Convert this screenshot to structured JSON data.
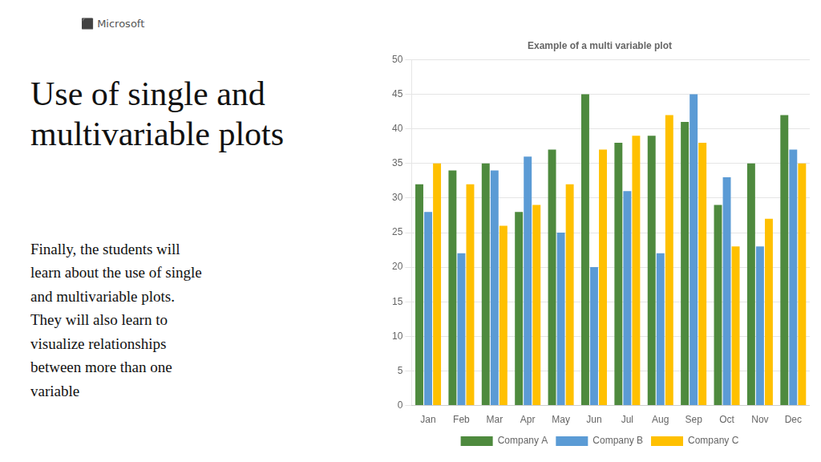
{
  "chart_data": {
    "type": "bar",
    "title": "Example of a multi variable plot",
    "categories": [
      "Jan",
      "Feb",
      "Mar",
      "Apr",
      "May",
      "Jun",
      "Jul",
      "Aug",
      "Sep",
      "Oct",
      "Nov",
      "Dec"
    ],
    "series": [
      {
        "name": "Company A",
        "color": "#4e8a3e",
        "values": [
          32,
          34,
          35,
          28,
          37,
          45,
          38,
          39,
          41,
          29,
          35,
          42
        ]
      },
      {
        "name": "Company B",
        "color": "#5b9bd5",
        "values": [
          28,
          22,
          34,
          36,
          25,
          20,
          31,
          22,
          45,
          33,
          23,
          37
        ]
      },
      {
        "name": "Company C",
        "color": "#ffc000",
        "values": [
          35,
          32,
          26,
          29,
          32,
          37,
          39,
          42,
          38,
          23,
          27,
          35
        ]
      }
    ],
    "ylim": [
      0,
      50
    ],
    "yticks": [
      0,
      5,
      10,
      15,
      20,
      25,
      30,
      35,
      40,
      45,
      50
    ],
    "grid": true,
    "legend": "bottom",
    "annotations": [
      "⬛ Microsoft",
      "Use of single and\nmultivariable plots",
      "Finally, the students will\nlearn about the use of single\nand multivariable plots.\nThey will also learn to\nvisualize relationships\nbetween more than one\nvariable"
    ]
  }
}
